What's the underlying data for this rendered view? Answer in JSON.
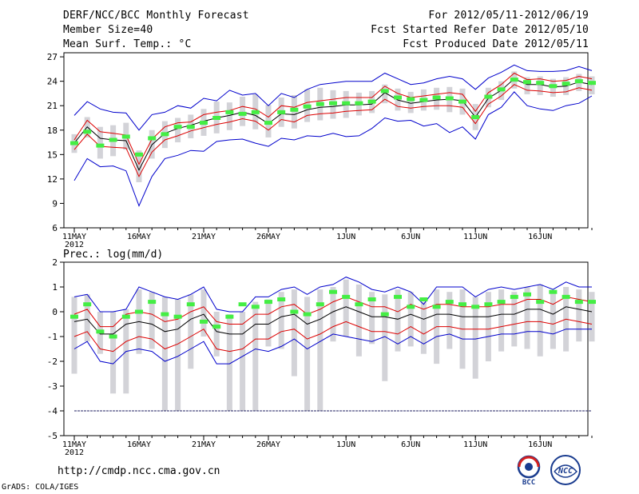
{
  "header": {
    "title": "DERF/NCC/BCC Monthly Forecast",
    "member_size": "Member Size=40",
    "variable": "Mean Surf. Temp.: °C",
    "period": "For 2012/05/11-2012/06/19",
    "fcst_started": "Fcst Started Refer Date 2012/05/10",
    "fcst_produced": "Fcst Produced Date 2012/05/11"
  },
  "footer": {
    "url": "http://cmdp.ncc.cma.gov.cn",
    "grads": "GrADS: COLA/IGES",
    "logo_bcc": "BCC",
    "logo_ncc": "NCC"
  },
  "colors": {
    "max_min": "#0000cc",
    "spread": "#dd0000",
    "mean": "#000000",
    "obs": "#44ee44",
    "box": "#d3d3d8"
  },
  "chart_data": [
    {
      "type": "line",
      "title": "Mean Surf. Temp.: °C",
      "x_tick_labels": [
        "11MAY",
        "16MAY",
        "21MAY",
        "26MAY",
        "1JUN",
        "6JUN",
        "11JUN",
        "16JUN"
      ],
      "x_tick_days": [
        0,
        5,
        10,
        15,
        21,
        26,
        31,
        36
      ],
      "year_label": "2012",
      "ylim": [
        6,
        27.5
      ],
      "yticks": [
        "6",
        "9",
        "12",
        "15",
        "18",
        "21",
        "24",
        "27"
      ],
      "series": [
        {
          "name": "member max",
          "values": [
            19.8,
            21.5,
            20.6,
            20.2,
            20.1,
            18.0,
            19.9,
            20.2,
            21.0,
            20.7,
            21.9,
            21.6,
            22.9,
            22.3,
            22.5,
            21.0,
            22.5,
            22.0,
            23.0,
            23.6,
            23.8,
            24.0,
            24.0,
            24.0,
            25.0,
            24.3,
            23.6,
            23.8,
            24.3,
            24.6,
            24.3,
            23.0,
            24.4,
            25.1,
            26.0,
            25.3,
            25.2,
            25.2,
            25.3,
            25.8,
            25.3
          ]
        },
        {
          "name": "spread upper",
          "values": [
            16.8,
            19.2,
            17.8,
            17.6,
            17.4,
            13.8,
            16.9,
            18.4,
            18.9,
            19.0,
            19.9,
            20.2,
            20.4,
            20.9,
            20.6,
            19.6,
            21.0,
            20.8,
            21.4,
            21.6,
            21.8,
            22.0,
            22.0,
            22.0,
            23.4,
            22.5,
            22.0,
            22.2,
            22.4,
            22.6,
            22.4,
            20.3,
            22.6,
            23.6,
            25.0,
            24.2,
            24.3,
            24.0,
            24.1,
            24.6,
            24.3
          ]
        },
        {
          "name": "ensemble mean",
          "values": [
            16.4,
            18.4,
            17.0,
            16.8,
            16.7,
            13.1,
            16.2,
            17.6,
            18.2,
            18.6,
            19.1,
            19.5,
            19.8,
            20.2,
            19.8,
            18.8,
            20.0,
            19.9,
            20.5,
            20.8,
            20.9,
            21.1,
            21.1,
            21.2,
            22.6,
            21.7,
            21.3,
            21.5,
            21.7,
            21.8,
            21.6,
            19.6,
            21.9,
            22.9,
            24.3,
            23.6,
            23.6,
            23.3,
            23.4,
            23.9,
            23.6
          ]
        },
        {
          "name": "spread lower",
          "values": [
            15.6,
            17.5,
            16.0,
            15.9,
            15.8,
            12.3,
            15.3,
            16.8,
            17.3,
            17.9,
            18.3,
            18.7,
            19.0,
            19.4,
            19.1,
            18.0,
            19.3,
            19.0,
            19.8,
            20.0,
            20.1,
            20.3,
            20.4,
            20.5,
            21.8,
            20.9,
            20.7,
            20.9,
            21.0,
            21.0,
            20.8,
            18.8,
            21.2,
            22.2,
            23.6,
            22.9,
            22.8,
            22.6,
            22.7,
            23.2,
            22.9
          ]
        },
        {
          "name": "member min",
          "values": [
            11.8,
            14.5,
            13.5,
            13.6,
            13.0,
            8.7,
            12.3,
            14.5,
            14.9,
            15.5,
            15.4,
            16.6,
            16.8,
            16.9,
            16.4,
            16.0,
            17.0,
            16.8,
            17.3,
            17.2,
            17.6,
            17.2,
            17.3,
            18.2,
            19.5,
            19.1,
            19.2,
            18.5,
            18.8,
            17.7,
            18.4,
            16.9,
            19.9,
            20.8,
            22.7,
            21.0,
            20.6,
            20.4,
            21.0,
            21.3,
            22.2
          ]
        }
      ],
      "box_upper": [
        17.5,
        19.6,
        18.4,
        18.6,
        18.9,
        15.5,
        18.0,
        19.1,
        19.5,
        19.9,
        20.6,
        21.5,
        21.4,
        22.1,
        22.4,
        21.1,
        22.0,
        22.3,
        23.0,
        23.2,
        22.9,
        22.8,
        22.6,
        22.8,
        23.6,
        23.1,
        22.7,
        23.0,
        23.2,
        23.3,
        23.1,
        21.2,
        23.2,
        24.0,
        25.2,
        24.5,
        24.6,
        24.3,
        24.5,
        24.9,
        24.6
      ],
      "box_lower": [
        15.2,
        17.1,
        14.5,
        14.8,
        15.6,
        11.6,
        14.5,
        15.8,
        16.5,
        17.0,
        17.3,
        17.6,
        18.0,
        18.5,
        18.1,
        17.1,
        18.4,
        18.2,
        19.0,
        19.2,
        19.4,
        19.5,
        19.8,
        20.1,
        21.3,
        20.4,
        20.1,
        20.4,
        20.5,
        20.2,
        19.9,
        18.0,
        20.8,
        21.7,
        23.1,
        22.4,
        22.3,
        22.1,
        22.3,
        22.8,
        22.4
      ],
      "observed": [
        16.4,
        17.8,
        16.1,
        16.8,
        17.2,
        15.0,
        17.0,
        17.5,
        18.4,
        18.4,
        18.9,
        19.5,
        20.2,
        20.0,
        20.2,
        18.9,
        20.2,
        20.5,
        20.9,
        21.2,
        21.3,
        21.3,
        21.3,
        21.5,
        22.8,
        22.0,
        21.8,
        21.7,
        22.0,
        21.9,
        21.5,
        19.6,
        22.1,
        23.0,
        24.2,
        23.9,
        23.8,
        23.4,
        23.7,
        24.0,
        23.8
      ]
    },
    {
      "type": "line",
      "title": "Prec.: log(mm/d)",
      "x_tick_labels": [
        "11MAY",
        "16MAY",
        "21MAY",
        "26MAY",
        "1JUN",
        "6JUN",
        "11JUN",
        "16JUN"
      ],
      "x_tick_days": [
        0,
        5,
        10,
        15,
        21,
        26,
        31,
        36
      ],
      "year_label": "2012",
      "ylim": [
        -5,
        2
      ],
      "yticks": [
        "-5",
        "-4",
        "-3",
        "-2",
        "-1",
        "0",
        "1",
        "2"
      ],
      "series": [
        {
          "name": "member max",
          "values": [
            0.6,
            0.7,
            0.0,
            0.0,
            0.1,
            1.0,
            0.8,
            0.6,
            0.5,
            0.7,
            1.0,
            0.1,
            0.0,
            0.0,
            0.6,
            0.6,
            0.9,
            1.0,
            0.7,
            1.0,
            1.1,
            1.4,
            1.2,
            0.9,
            0.8,
            1.0,
            0.8,
            0.3,
            1.0,
            1.0,
            1.0,
            0.6,
            0.9,
            1.0,
            0.9,
            1.0,
            1.1,
            0.9,
            1.2,
            1.0,
            1.0
          ]
        },
        {
          "name": "spread upper",
          "values": [
            -0.1,
            0.1,
            -0.6,
            -0.6,
            -0.1,
            0.0,
            -0.1,
            -0.4,
            -0.3,
            0.0,
            0.2,
            -0.4,
            -0.5,
            -0.5,
            -0.1,
            -0.1,
            0.2,
            0.3,
            -0.1,
            0.1,
            0.4,
            0.6,
            0.4,
            0.2,
            0.2,
            0.0,
            0.3,
            0.1,
            0.3,
            0.3,
            0.2,
            0.2,
            0.2,
            0.3,
            0.3,
            0.5,
            0.5,
            0.3,
            0.6,
            0.5,
            0.4
          ]
        },
        {
          "name": "ensemble mean",
          "values": [
            -0.4,
            -0.3,
            -0.9,
            -0.9,
            -0.5,
            -0.4,
            -0.5,
            -0.8,
            -0.7,
            -0.3,
            -0.1,
            -0.8,
            -0.9,
            -0.9,
            -0.5,
            -0.5,
            -0.2,
            -0.1,
            -0.5,
            -0.3,
            0.0,
            0.2,
            0.0,
            -0.2,
            -0.2,
            -0.3,
            -0.1,
            -0.3,
            -0.1,
            -0.1,
            -0.2,
            -0.2,
            -0.2,
            -0.1,
            -0.1,
            0.1,
            0.1,
            -0.1,
            0.2,
            0.1,
            0.0
          ]
        },
        {
          "name": "spread lower",
          "values": [
            -1.0,
            -0.8,
            -1.5,
            -1.6,
            -1.2,
            -1.0,
            -1.1,
            -1.5,
            -1.3,
            -1.0,
            -0.7,
            -1.5,
            -1.6,
            -1.5,
            -1.1,
            -1.1,
            -0.8,
            -0.7,
            -1.1,
            -0.9,
            -0.6,
            -0.4,
            -0.6,
            -0.8,
            -0.8,
            -0.9,
            -0.6,
            -0.9,
            -0.6,
            -0.6,
            -0.7,
            -0.7,
            -0.7,
            -0.6,
            -0.5,
            -0.4,
            -0.4,
            -0.5,
            -0.3,
            -0.4,
            -0.5
          ]
        },
        {
          "name": "member min",
          "values": [
            -1.5,
            -1.2,
            -2.0,
            -2.1,
            -1.6,
            -1.5,
            -1.6,
            -2.0,
            -1.8,
            -1.5,
            -1.2,
            -2.1,
            -2.1,
            -1.8,
            -1.5,
            -1.6,
            -1.4,
            -1.1,
            -1.5,
            -1.2,
            -0.9,
            -1.0,
            -1.1,
            -1.2,
            -1.0,
            -1.3,
            -1.0,
            -1.3,
            -1.0,
            -0.9,
            -1.1,
            -1.1,
            -1.0,
            -0.9,
            -0.9,
            -0.8,
            -0.8,
            -0.9,
            -0.7,
            -0.7,
            -0.7
          ]
        }
      ],
      "floor_line": -4,
      "box_upper": [
        0.6,
        0.7,
        0.0,
        0.0,
        0.1,
        0.9,
        0.8,
        0.6,
        0.5,
        0.7,
        0.9,
        0.0,
        -0.1,
        0.0,
        0.4,
        0.5,
        0.8,
        0.9,
        0.6,
        0.9,
        1.0,
        1.3,
        1.1,
        0.8,
        0.7,
        0.9,
        0.8,
        0.4,
        0.9,
        0.8,
        0.9,
        0.6,
        0.8,
        0.9,
        0.8,
        1.0,
        1.1,
        0.8,
        1.0,
        0.9,
        0.8
      ],
      "box_lower": [
        -2.5,
        -1.2,
        -1.7,
        -3.3,
        -3.3,
        -1.7,
        -1.5,
        -4.0,
        -4.0,
        -2.3,
        -1.0,
        -1.8,
        -4.0,
        -4.0,
        -4.0,
        -1.4,
        -1.5,
        -2.6,
        -4.0,
        -4.0,
        -1.2,
        -1.0,
        -1.8,
        -1.3,
        -2.8,
        -1.6,
        -1.4,
        -1.7,
        -2.1,
        -1.5,
        -2.3,
        -2.7,
        -2.0,
        -1.6,
        -1.4,
        -1.5,
        -1.8,
        -1.5,
        -1.6,
        -1.2,
        -1.2
      ],
      "observed": [
        -0.2,
        0.3,
        -0.8,
        -1.0,
        -0.2,
        0.0,
        0.4,
        -0.1,
        -0.2,
        0.3,
        -0.4,
        -0.6,
        -0.2,
        0.3,
        0.2,
        0.4,
        0.5,
        0.0,
        -0.1,
        0.3,
        0.8,
        0.6,
        0.3,
        0.5,
        -0.1,
        0.6,
        0.2,
        0.5,
        0.2,
        0.4,
        0.3,
        0.2,
        0.3,
        0.4,
        0.6,
        0.7,
        0.4,
        0.8,
        0.6,
        0.4,
        0.4
      ]
    }
  ]
}
